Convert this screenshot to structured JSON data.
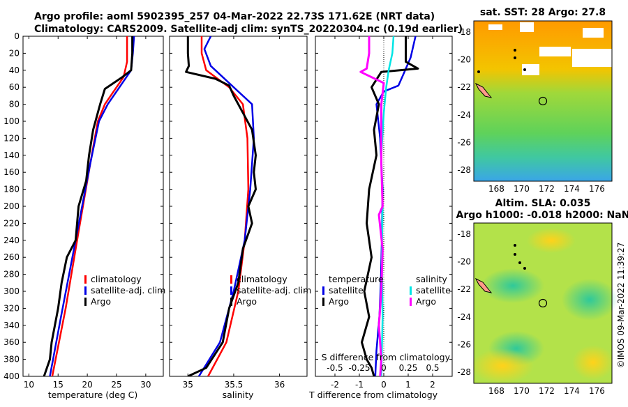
{
  "titles": {
    "line1": "Argo profile: aoml 5902395_257 04-Mar-2022 22.73S 171.62E (NRT data)",
    "line2": "Climatology: CARS2009. Satellite-adj clim: synTS_20220304.nc (0.19d earlier)"
  },
  "colors": {
    "climatology": "#ff0000",
    "satellite": "#0000e6",
    "argo": "#000000",
    "salinity_sat": "#00e5e5",
    "salinity_argo": "#ff00ff"
  },
  "chart_data": [
    {
      "type": "line",
      "name": "temperature",
      "xlabel": "temperature (deg C)",
      "ylabel": "",
      "xlim": [
        9,
        33
      ],
      "ylim": [
        400,
        0
      ],
      "xticks": [
        10,
        15,
        20,
        25,
        30
      ],
      "yticks": [
        0,
        20,
        40,
        60,
        80,
        100,
        120,
        140,
        160,
        180,
        200,
        220,
        240,
        260,
        280,
        300,
        320,
        340,
        360,
        380,
        400
      ],
      "legend": [
        "climatology",
        "satellite-adj. clim",
        "Argo"
      ],
      "series": [
        {
          "name": "climatology",
          "x": [
            26.8,
            26.8,
            26.2,
            25.0,
            23.0,
            21.8,
            20.5,
            18.5,
            16.3,
            14.0
          ],
          "y": [
            0,
            30,
            48,
            60,
            80,
            100,
            150,
            230,
            320,
            400
          ]
        },
        {
          "name": "satellite-adj. clim",
          "x": [
            28.0,
            27.8,
            27.5,
            25.5,
            23.5,
            22.0,
            20.5,
            18.0,
            15.5,
            13.6
          ],
          "y": [
            0,
            20,
            40,
            60,
            80,
            100,
            150,
            240,
            330,
            400
          ]
        },
        {
          "name": "Argo",
          "x": [
            27.7,
            27.7,
            27.5,
            26.0,
            24.5,
            23.0,
            22.2,
            21.0,
            20.3,
            19.8,
            18.5,
            18.0,
            16.5,
            15.6,
            15.0,
            13.9,
            13.6,
            13.1,
            12.6
          ],
          "y": [
            0,
            20,
            40,
            48,
            55,
            62,
            80,
            110,
            140,
            170,
            200,
            240,
            260,
            290,
            320,
            360,
            380,
            390,
            400
          ]
        }
      ]
    },
    {
      "type": "line",
      "name": "salinity",
      "xlabel": "salinity",
      "ylabel": "",
      "xlim": [
        34.8,
        36.3
      ],
      "ylim": [
        400,
        0
      ],
      "xticks": [
        35,
        35.5,
        36
      ],
      "legend": [
        "climatology",
        "satellite-adj. clim",
        "Argo"
      ],
      "series": [
        {
          "name": "climatology",
          "x": [
            35.15,
            35.15,
            35.2,
            35.45,
            35.6,
            35.65,
            35.66,
            35.62,
            35.55,
            35.42,
            35.22
          ],
          "y": [
            0,
            20,
            40,
            60,
            80,
            120,
            180,
            240,
            300,
            360,
            400
          ]
        },
        {
          "name": "satellite-adj. clim",
          "x": [
            35.25,
            35.18,
            35.25,
            35.5,
            35.7,
            35.72,
            35.68,
            35.62,
            35.5,
            35.35,
            35.12
          ],
          "y": [
            0,
            15,
            35,
            60,
            80,
            120,
            180,
            240,
            300,
            360,
            400
          ]
        },
        {
          "name": "Argo",
          "x": [
            35.0,
            35.0,
            35.01,
            34.98,
            35.3,
            35.45,
            35.5,
            35.6,
            35.7,
            35.74,
            35.72,
            35.74,
            35.66,
            35.7,
            35.6,
            35.55,
            35.45,
            35.38,
            35.2,
            35.0
          ],
          "y": [
            0,
            20,
            35,
            42,
            50,
            58,
            70,
            90,
            110,
            140,
            160,
            180,
            200,
            220,
            250,
            290,
            320,
            360,
            390,
            400
          ]
        }
      ]
    },
    {
      "type": "line",
      "name": "difference",
      "xlabel": "T difference from climatology",
      "top_label": "S difference from climatology",
      "xlim": [
        -2.8,
        2.8
      ],
      "ylim": [
        400,
        0
      ],
      "xticks": [
        -2,
        -1,
        0,
        1,
        2
      ],
      "s_ticks": [
        "-0.5",
        "-0.25",
        "0",
        "0.25",
        "0.5"
      ],
      "s_tick_values": [
        -2,
        -1,
        0,
        1,
        2
      ],
      "legend_temperature": {
        "title": "temperature",
        "items": [
          "satellite",
          "Argo"
        ]
      },
      "legend_salinity": {
        "title": "salinity",
        "items": [
          "satellite",
          "Argo"
        ]
      },
      "series": [
        {
          "name": "temperature satellite",
          "x": [
            1.3,
            1.1,
            0.8,
            0.6,
            0.0,
            -0.3,
            -0.15,
            -0.05,
            -0.08,
            -0.12,
            -0.18,
            -0.3,
            -0.35
          ],
          "y": [
            0,
            25,
            45,
            58,
            65,
            80,
            120,
            180,
            240,
            290,
            330,
            370,
            400
          ]
        },
        {
          "name": "temperature Argo",
          "x": [
            0.9,
            0.9,
            1.4,
            -0.1,
            -0.5,
            -0.2,
            -0.4,
            -0.3,
            -0.6,
            -0.7,
            -0.5,
            -0.8,
            -0.6,
            -0.9,
            -0.7,
            -0.5,
            -0.4
          ],
          "y": [
            0,
            30,
            38,
            42,
            60,
            80,
            110,
            140,
            180,
            220,
            260,
            300,
            330,
            360,
            380,
            390,
            400
          ]
        },
        {
          "name": "salinity satellite",
          "x": [
            0.4,
            0.35,
            0.2,
            0.1,
            0.0,
            -0.1,
            -0.05,
            -0.08,
            -0.05,
            -0.1
          ],
          "y": [
            0,
            20,
            40,
            60,
            90,
            140,
            200,
            260,
            330,
            400
          ]
        },
        {
          "name": "salinity Argo",
          "x": [
            -0.6,
            -0.6,
            -0.7,
            -0.95,
            0.0,
            -0.1,
            -0.1,
            -0.05,
            -0.2,
            -0.05,
            -0.1,
            -0.2,
            -0.1,
            -0.15
          ],
          "y": [
            0,
            20,
            38,
            42,
            55,
            80,
            150,
            200,
            210,
            250,
            300,
            340,
            380,
            400
          ]
        }
      ]
    },
    {
      "type": "heatmap",
      "name": "sst-map",
      "title": "sat. SST: 28 Argo: 27.8",
      "xticks": [
        168,
        170,
        172,
        174,
        176
      ],
      "yticks": [
        -18,
        -20,
        -22,
        -24,
        -26,
        -28
      ],
      "xlim": [
        166.2,
        177.2
      ],
      "ylim": [
        -28.8,
        -17.2
      ],
      "argo_position": [
        171.62,
        -22.73
      ]
    },
    {
      "type": "heatmap",
      "name": "sla-map",
      "title": "Altim. SLA: 0.035",
      "subtitle": "Argo h1000: -0.018 h2000: NaN",
      "xticks": [
        168,
        170,
        172,
        174,
        176
      ],
      "yticks": [
        -18,
        -20,
        -22,
        -24,
        -26,
        -28
      ],
      "xlim": [
        166.2,
        177.2
      ],
      "ylim": [
        -28.8,
        -17.2
      ],
      "argo_position": [
        171.62,
        -22.73
      ]
    }
  ],
  "stamp": "©IMOS 09-Mar-2022 11:39:27"
}
